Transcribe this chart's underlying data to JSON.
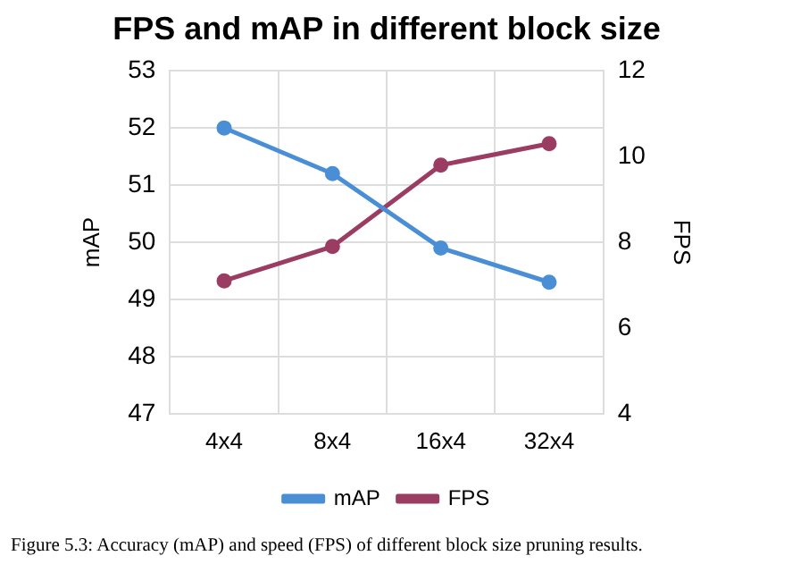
{
  "chart_data": {
    "type": "line",
    "title": "FPS and mAP in different block size",
    "ylabel": "mAP",
    "y2label": "FPS",
    "categories": [
      "4x4",
      "8x4",
      "16x4",
      "32x4"
    ],
    "series": [
      {
        "name": "mAP",
        "color": "#4a8fd6",
        "values": [
          52.0,
          51.2,
          49.9,
          49.3
        ]
      },
      {
        "name": "FPS",
        "color": "#9b3d62",
        "values": [
          7.1,
          7.9,
          9.8,
          10.3
        ],
        "axis": "y2"
      }
    ],
    "ylim": [
      47,
      53
    ],
    "yticks": [
      47,
      48,
      49,
      50,
      51,
      52,
      53
    ],
    "y2lim": [
      4,
      12
    ],
    "y2ticks": [
      4,
      6,
      8,
      10,
      12
    ],
    "grid": true,
    "legend": "bottom",
    "marker": "circle",
    "line_style": "solid",
    "annotations": [
      "Figure 5.3: Accuracy (mAP) and speed (FPS) of different block size pruning results."
    ]
  }
}
